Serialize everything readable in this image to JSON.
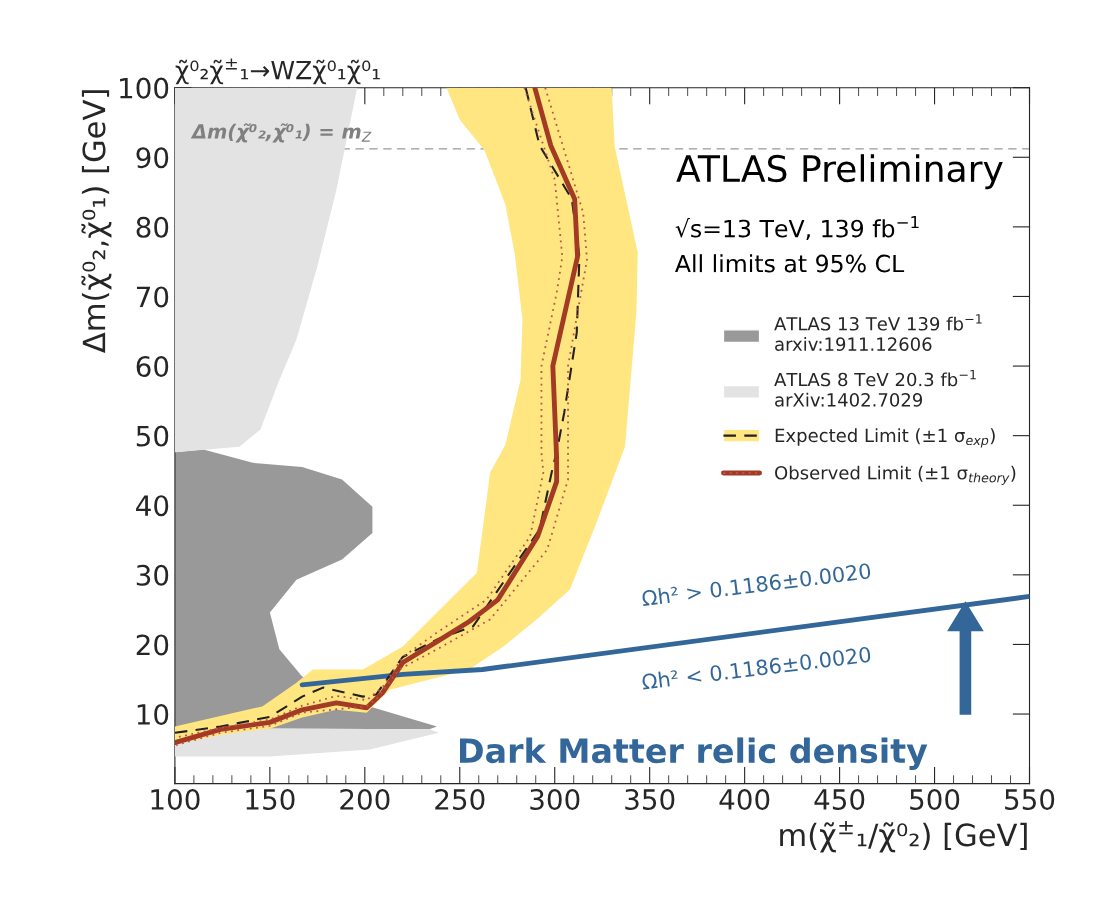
{
  "chart_data": {
    "type": "area",
    "title": "χ̃⁰₂χ̃$^{±}$₁→WZχ̃⁰₁χ̃⁰₁",
    "xlabel": "m(χ̃$^{±}$₁/χ̃⁰₂) [GeV]",
    "ylabel": "Δm(χ̃⁰₂,χ̃⁰₁) [GeV]",
    "xlim": [
      100,
      550
    ],
    "ylim": [
      0,
      100
    ],
    "xticks": [
      100,
      150,
      200,
      250,
      300,
      350,
      400,
      450,
      500,
      550
    ],
    "yticks": [
      10,
      20,
      30,
      40,
      50,
      60,
      70,
      80,
      90,
      100
    ],
    "grid": false,
    "legend": "right",
    "series": [
      {
        "type": "area",
        "name": "ATLAS 13 TeV 139 fb$^{−1}$\narxiv:1911.12606",
        "color": "#999999",
        "x": [
          100,
          115,
          141,
          167,
          188,
          204,
          204,
          188,
          164,
          150,
          155,
          167,
          202.6,
          238,
          234,
          100
        ],
        "values": [
          47.6,
          48,
          46.1,
          45.5,
          43.7,
          39.8,
          36,
          32.2,
          29.3,
          24.6,
          19.3,
          15.4,
          11.1,
          8.2,
          7.8,
          8.0
        ]
      },
      {
        "type": "area",
        "name": "ATLAS 8 TeV 20.3 fb$^{−1}$\narXiv:1402.7029",
        "color": "#e3e3e3",
        "x": [
          100,
          134,
          145,
          155,
          164,
          175,
          185,
          196,
          100
        ],
        "values": [
          47.6,
          48.4,
          50.9,
          58,
          63.8,
          74.3,
          85.3,
          100,
          100
        ]
      },
      {
        "type": "area",
        "color": "#e3e3e3",
        "x": [
          100,
          234,
          239,
          202.6,
          150,
          100
        ],
        "values": [
          8.0,
          7.8,
          7.3,
          4.9,
          3.9,
          3.9
        ]
      },
      {
        "type": "area",
        "name": "Expected Limit (±1 σ$_{exp}$)",
        "color": "#ffe680",
        "x": [
          243,
          250,
          263,
          274,
          279,
          283,
          282,
          274,
          266,
          259,
          238,
          220,
          199,
          172.6,
          164,
          146,
          100,
          100,
          124,
          150,
          167,
          185,
          201,
          213,
          255,
          273,
          290.5,
          308,
          322,
          337,
          343,
          343.7,
          331.6,
          330
        ],
        "values": [
          100,
          95.4,
          91,
          83.2,
          76,
          66.7,
          58,
          48.7,
          44.7,
          30.3,
          24.6,
          19.7,
          16.4,
          16.4,
          14.5,
          11.1,
          8.2,
          5.6,
          7,
          7.9,
          9.5,
          10.6,
          10.2,
          13.5,
          16.4,
          19.7,
          23.6,
          27.9,
          37.5,
          48.4,
          67.7,
          76.3,
          91.5,
          100
        ]
      },
      {
        "type": "line",
        "color": "#336699",
        "line_style": "solid",
        "x": [
          167,
          220,
          262,
          550
        ],
        "values": [
          14.2,
          15.7,
          16.4,
          26.9
        ]
      },
      {
        "type": "line",
        "color": "#222222",
        "line_style": "dashed",
        "x": [
          284.7,
          292,
          309,
          313,
          311.6,
          305,
          301,
          299,
          292,
          257,
          238,
          220,
          206,
          199,
          178,
          167,
          150,
          124,
          100
        ],
        "values": [
          100,
          91.7,
          84,
          75.7,
          64.8,
          53.3,
          47.6,
          45.5,
          36.5,
          22.6,
          20.7,
          18.2,
          12.8,
          12.5,
          13.8,
          12.5,
          9.6,
          8.2,
          7.3
        ]
      },
      {
        "type": "line",
        "name": "Observed Limit (±1 σ$_{theory}$)",
        "color": "#a33a24",
        "line_style": "solid",
        "x": [
          289.5,
          297.9,
          310.5,
          312,
          299,
          301,
          301,
          291,
          270,
          255,
          238,
          220,
          209.5,
          201,
          185,
          167,
          150,
          124,
          100
        ],
        "values": [
          100,
          91.7,
          84,
          75.7,
          60,
          46.8,
          43.4,
          35.5,
          26.4,
          23.3,
          20.4,
          17.4,
          13.1,
          10.9,
          11.6,
          10.6,
          8.8,
          7.8,
          5.9
        ]
      },
      {
        "type": "line",
        "color": "#c0504d",
        "line_style": "dotted",
        "x": [
          295,
          315,
          317,
          307,
          307,
          307,
          296,
          266,
          238,
          218,
          206,
          201,
          167,
          150,
          124,
          100
        ],
        "values": [
          100,
          82,
          75.3,
          60,
          47.6,
          43.7,
          33.6,
          23.6,
          19.3,
          16.4,
          12.1,
          11.1,
          10.2,
          8.3,
          7.3,
          5.5
        ]
      },
      {
        "type": "line",
        "color": "#c0504d",
        "line_style": "dotted",
        "x": [
          284,
          300,
          304,
          301,
          293,
          293,
          294,
          287,
          264,
          238,
          220,
          209.5,
          201,
          185,
          167,
          150,
          124,
          100
        ],
        "values": [
          100,
          86.8,
          75.7,
          70.5,
          60,
          47.6,
          44.7,
          35.5,
          26.4,
          21.7,
          18.2,
          13.9,
          12,
          12.6,
          11.2,
          9.2,
          8,
          6.6
        ]
      }
    ],
    "ref_lines": [
      {
        "axis": "y",
        "value": 91.2,
        "label": "Δm(χ̃⁰₂,χ̃⁰₁) = m$_{Z}$",
        "color": "#999999",
        "line_style": "dashed"
      }
    ],
    "annotations": [
      "ATLAS Preliminary",
      "√s=13 TeV, 139 fb$^{−1}$",
      "All limits at 95% CL",
      "Ωh² > 0.1186±0.0020",
      "Ωh² < 0.1186±0.0020",
      "Dark Matter relic density"
    ]
  }
}
